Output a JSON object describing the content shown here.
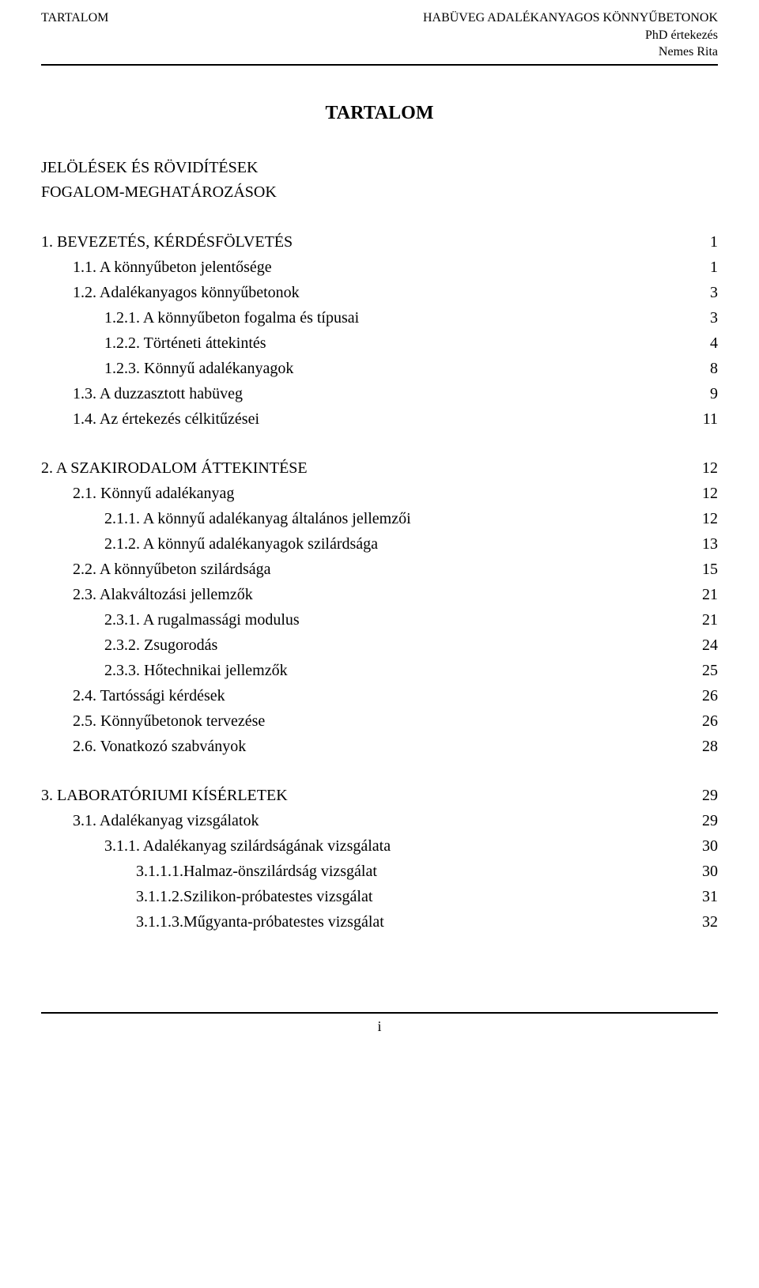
{
  "header": {
    "left": "TARTALOM",
    "right1": "HABÜVEG ADALÉKANYAGOS KÖNNYŰBETONOK",
    "right2": "PhD értekezés",
    "right3": "Nemes Rita"
  },
  "title": "TARTALOM",
  "frontMatter": [
    "JELÖLÉSEK ÉS RÖVIDÍTÉSEK",
    "FOGALOM-MEGHATÁROZÁSOK"
  ],
  "sections": [
    {
      "rows": [
        {
          "indent": 0,
          "label": "1.  BEVEZETÉS, KÉRDÉSFÖLVETÉS",
          "page": "1"
        },
        {
          "indent": 1,
          "label": "1.1. A könnyűbeton jelentősége",
          "page": "1"
        },
        {
          "indent": 1,
          "label": "1.2. Adalékanyagos könnyűbetonok",
          "page": "3"
        },
        {
          "indent": 2,
          "label": "1.2.1.  A könnyűbeton fogalma és típusai",
          "page": "3"
        },
        {
          "indent": 2,
          "label": "1.2.2.  Történeti áttekintés",
          "page": "4"
        },
        {
          "indent": 2,
          "label": "1.2.3.  Könnyű adalékanyagok",
          "page": "8"
        },
        {
          "indent": 1,
          "label": "1.3. A duzzasztott habüveg",
          "page": "9"
        },
        {
          "indent": 1,
          "label": "1.4. Az értekezés célkitűzései",
          "page": "11"
        }
      ]
    },
    {
      "rows": [
        {
          "indent": 0,
          "label": "2.  A SZAKIRODALOM ÁTTEKINTÉSE",
          "page": "12"
        },
        {
          "indent": 1,
          "label": "2.1. Könnyű adalékanyag",
          "page": "12"
        },
        {
          "indent": 2,
          "label": "2.1.1.  A könnyű adalékanyag általános jellemzői",
          "page": "12"
        },
        {
          "indent": 2,
          "label": "2.1.2.  A könnyű adalékanyagok szilárdsága",
          "page": "13"
        },
        {
          "indent": 1,
          "label": "2.2. A könnyűbeton szilárdsága",
          "page": "15"
        },
        {
          "indent": 1,
          "label": "2.3. Alakváltozási jellemzők",
          "page": "21"
        },
        {
          "indent": 2,
          "label": "2.3.1.  A rugalmassági modulus",
          "page": "21"
        },
        {
          "indent": 2,
          "label": "2.3.2.  Zsugorodás",
          "page": "24"
        },
        {
          "indent": 2,
          "label": "2.3.3.  Hőtechnikai jellemzők",
          "page": "25"
        },
        {
          "indent": 1,
          "label": "2.4. Tartóssági kérdések",
          "page": "26"
        },
        {
          "indent": 1,
          "label": "2.5. Könnyűbetonok tervezése",
          "page": "26"
        },
        {
          "indent": 1,
          "label": "2.6. Vonatkozó szabványok",
          "page": "28"
        }
      ]
    },
    {
      "rows": [
        {
          "indent": 0,
          "label": "3.  LABORATÓRIUMI KÍSÉRLETEK",
          "page": "29"
        },
        {
          "indent": 1,
          "label": "3.1. Adalékanyag vizsgálatok",
          "page": "29"
        },
        {
          "indent": 2,
          "label": "3.1.1.  Adalékanyag szilárdságának vizsgálata",
          "page": "30"
        },
        {
          "indent": 3,
          "label": "3.1.1.1.Halmaz-önszilárdság vizsgálat",
          "page": "30"
        },
        {
          "indent": 3,
          "label": "3.1.1.2.Szilikon-próbatestes vizsgálat",
          "page": "31"
        },
        {
          "indent": 3,
          "label": "3.1.1.3.Műgyanta-próbatestes vizsgálat",
          "page": "32"
        }
      ]
    }
  ],
  "footer": {
    "pageNumber": "i"
  }
}
